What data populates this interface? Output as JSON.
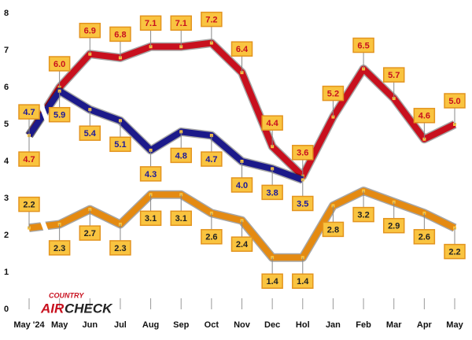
{
  "chart_data": {
    "type": "line",
    "categories": [
      "May '24",
      "May",
      "Jun",
      "Jul",
      "Aug",
      "Sep",
      "Oct",
      "Nov",
      "Dec",
      "Hol",
      "Jan",
      "Feb",
      "Mar",
      "Apr",
      "May"
    ],
    "series": [
      {
        "color": "#c8101e",
        "text_color": "#c8101e",
        "values": [
          4.7,
          6.0,
          6.9,
          6.8,
          7.1,
          7.1,
          7.2,
          6.4,
          4.4,
          3.6,
          5.2,
          6.5,
          5.7,
          4.6,
          5.0
        ],
        "value_labels": [
          "4.7",
          "6.0",
          "6.9",
          "6.8",
          "7.1",
          "7.1",
          "7.2",
          "6.4",
          "4.4",
          "3.6",
          "5.2",
          "6.5",
          "5.7",
          "4.6",
          "5.0"
        ]
      },
      {
        "color": "#1c1a8a",
        "text_color": "#1c1a9a",
        "values": [
          4.7,
          5.9,
          5.4,
          5.1,
          4.3,
          4.8,
          4.7,
          4.0,
          3.8,
          3.5,
          null,
          null,
          null,
          null,
          null
        ],
        "value_labels": [
          "4.7",
          "5.9",
          "5.4",
          "5.1",
          "4.3",
          "4.8",
          "4.7",
          "4.0",
          "3.8",
          "3.5",
          null,
          null,
          null,
          null,
          null
        ]
      },
      {
        "color": "#e48a12",
        "text_color": "#222222",
        "values": [
          2.2,
          2.3,
          2.7,
          2.3,
          3.1,
          3.1,
          2.6,
          2.4,
          1.4,
          1.4,
          2.8,
          3.2,
          2.9,
          2.6,
          2.2
        ],
        "value_labels": [
          "2.2",
          "2.3",
          "2.7",
          "2.3",
          "3.1",
          "3.1",
          "2.6",
          "2.4",
          "1.4",
          "1.4",
          "2.8",
          "3.2",
          "2.9",
          "2.6",
          "2.2"
        ]
      }
    ],
    "ylim": [
      0,
      8
    ],
    "yticks": [
      0,
      1,
      2,
      3,
      4,
      5,
      6,
      7,
      8
    ],
    "grid": false,
    "logo_top": "COUNTRY",
    "logo_air": "AIR",
    "logo_check": "CHECK"
  }
}
